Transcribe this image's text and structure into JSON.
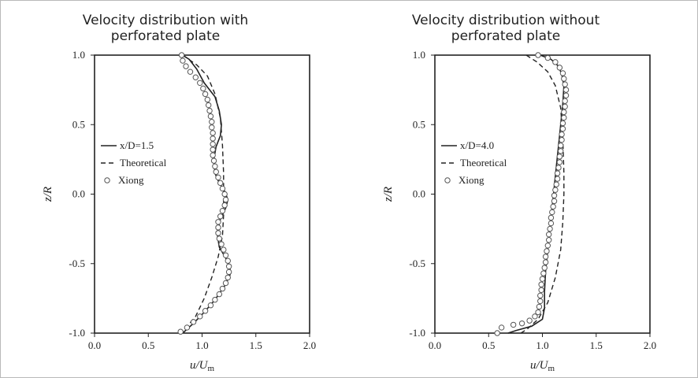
{
  "chart_data": [
    {
      "type": "line",
      "title": "Velocity distribution with perforated plate",
      "xlabel": "u/U",
      "xlabel_sub": "m",
      "ylabel": "z/R",
      "xlim": [
        0.0,
        2.0
      ],
      "ylim": [
        -1.0,
        1.0
      ],
      "xticks": [
        "0.0",
        "0.5",
        "1.0",
        "1.5",
        "2.0"
      ],
      "yticks": [
        "1.0",
        "0.5",
        "0.0",
        "-0.5",
        "-1.0"
      ],
      "legend_position": "middle-left",
      "series": [
        {
          "name": "x/D=1.5",
          "style": "solid",
          "points": [
            [
              0.82,
              1.0
            ],
            [
              0.88,
              0.97
            ],
            [
              0.95,
              0.9
            ],
            [
              1.02,
              0.8
            ],
            [
              1.12,
              0.7
            ],
            [
              1.16,
              0.6
            ],
            [
              1.18,
              0.5
            ],
            [
              1.17,
              0.42
            ],
            [
              1.13,
              0.34
            ],
            [
              1.11,
              0.25
            ],
            [
              1.12,
              0.15
            ],
            [
              1.16,
              0.08
            ],
            [
              1.21,
              0.02
            ],
            [
              1.24,
              -0.04
            ],
            [
              1.22,
              -0.1
            ],
            [
              1.17,
              -0.18
            ],
            [
              1.14,
              -0.28
            ],
            [
              1.16,
              -0.38
            ],
            [
              1.22,
              -0.46
            ],
            [
              1.26,
              -0.52
            ],
            [
              1.26,
              -0.58
            ],
            [
              1.21,
              -0.66
            ],
            [
              1.12,
              -0.76
            ],
            [
              1.02,
              -0.85
            ],
            [
              0.92,
              -0.93
            ],
            [
              0.82,
              -1.0
            ]
          ]
        },
        {
          "name": "Theoretical",
          "style": "dashed",
          "points": [
            [
              0.82,
              1.0
            ],
            [
              0.95,
              0.93
            ],
            [
              1.05,
              0.85
            ],
            [
              1.12,
              0.72
            ],
            [
              1.17,
              0.55
            ],
            [
              1.19,
              0.35
            ],
            [
              1.2,
              0.15
            ],
            [
              1.2,
              0.0
            ],
            [
              1.2,
              -0.15
            ],
            [
              1.19,
              -0.3
            ],
            [
              1.15,
              -0.45
            ],
            [
              1.09,
              -0.6
            ],
            [
              1.02,
              -0.75
            ],
            [
              0.94,
              -0.88
            ],
            [
              0.84,
              -0.97
            ],
            [
              0.8,
              -1.0
            ]
          ]
        },
        {
          "name": "Xiong",
          "style": "markers",
          "points": [
            [
              0.81,
              1.0
            ],
            [
              0.82,
              0.96
            ],
            [
              0.85,
              0.92
            ],
            [
              0.89,
              0.88
            ],
            [
              0.94,
              0.84
            ],
            [
              0.98,
              0.8
            ],
            [
              1.01,
              0.76
            ],
            [
              1.03,
              0.72
            ],
            [
              1.05,
              0.68
            ],
            [
              1.06,
              0.64
            ],
            [
              1.07,
              0.6
            ],
            [
              1.08,
              0.56
            ],
            [
              1.09,
              0.52
            ],
            [
              1.09,
              0.48
            ],
            [
              1.1,
              0.44
            ],
            [
              1.1,
              0.4
            ],
            [
              1.1,
              0.36
            ],
            [
              1.1,
              0.32
            ],
            [
              1.1,
              0.28
            ],
            [
              1.11,
              0.24
            ],
            [
              1.12,
              0.2
            ],
            [
              1.13,
              0.16
            ],
            [
              1.15,
              0.12
            ],
            [
              1.17,
              0.08
            ],
            [
              1.19,
              0.04
            ],
            [
              1.21,
              0.0
            ],
            [
              1.22,
              -0.04
            ],
            [
              1.21,
              -0.08
            ],
            [
              1.19,
              -0.12
            ],
            [
              1.17,
              -0.16
            ],
            [
              1.15,
              -0.2
            ],
            [
              1.15,
              -0.24
            ],
            [
              1.15,
              -0.28
            ],
            [
              1.16,
              -0.32
            ],
            [
              1.18,
              -0.36
            ],
            [
              1.2,
              -0.4
            ],
            [
              1.22,
              -0.44
            ],
            [
              1.24,
              -0.48
            ],
            [
              1.25,
              -0.52
            ],
            [
              1.25,
              -0.56
            ],
            [
              1.24,
              -0.6
            ],
            [
              1.22,
              -0.64
            ],
            [
              1.19,
              -0.68
            ],
            [
              1.16,
              -0.72
            ],
            [
              1.12,
              -0.76
            ],
            [
              1.08,
              -0.8
            ],
            [
              1.03,
              -0.84
            ],
            [
              0.98,
              -0.88
            ],
            [
              0.92,
              -0.92
            ],
            [
              0.86,
              -0.96
            ],
            [
              0.8,
              -0.99
            ]
          ]
        }
      ]
    },
    {
      "type": "line",
      "title": "Velocity distribution without perforated plate",
      "xlabel": "u/U",
      "xlabel_sub": "m",
      "ylabel": "z/R",
      "xlim": [
        0.0,
        2.0
      ],
      "ylim": [
        -1.0,
        1.0
      ],
      "xticks": [
        "0.0",
        "0.5",
        "1.0",
        "1.5",
        "2.0"
      ],
      "yticks": [
        "1.0",
        "0.5",
        "0.0",
        "-0.5",
        "-1.0"
      ],
      "legend_position": "middle-left",
      "series": [
        {
          "name": "x/D=4.0",
          "style": "solid",
          "points": [
            [
              0.98,
              1.0
            ],
            [
              1.08,
              0.97
            ],
            [
              1.15,
              0.92
            ],
            [
              1.18,
              0.86
            ],
            [
              1.2,
              0.78
            ],
            [
              1.19,
              0.65
            ],
            [
              1.17,
              0.5
            ],
            [
              1.15,
              0.35
            ],
            [
              1.13,
              0.2
            ],
            [
              1.11,
              0.05
            ],
            [
              1.09,
              -0.1
            ],
            [
              1.07,
              -0.25
            ],
            [
              1.05,
              -0.4
            ],
            [
              1.03,
              -0.55
            ],
            [
              1.02,
              -0.7
            ],
            [
              1.02,
              -0.82
            ],
            [
              1.0,
              -0.9
            ],
            [
              0.9,
              -0.95
            ],
            [
              0.76,
              -0.98
            ],
            [
              0.68,
              -1.0
            ]
          ]
        },
        {
          "name": "Theoretical",
          "style": "dashed",
          "points": [
            [
              0.85,
              1.0
            ],
            [
              0.95,
              0.95
            ],
            [
              1.05,
              0.88
            ],
            [
              1.12,
              0.78
            ],
            [
              1.17,
              0.62
            ],
            [
              1.19,
              0.4
            ],
            [
              1.2,
              0.15
            ],
            [
              1.2,
              0.0
            ],
            [
              1.19,
              -0.2
            ],
            [
              1.17,
              -0.4
            ],
            [
              1.12,
              -0.6
            ],
            [
              1.05,
              -0.78
            ],
            [
              0.96,
              -0.9
            ],
            [
              0.86,
              -0.97
            ],
            [
              0.8,
              -1.0
            ]
          ]
        },
        {
          "name": "Xiong",
          "style": "markers",
          "points": [
            [
              0.96,
              1.0
            ],
            [
              1.05,
              0.98
            ],
            [
              1.12,
              0.95
            ],
            [
              1.16,
              0.91
            ],
            [
              1.19,
              0.87
            ],
            [
              1.2,
              0.83
            ],
            [
              1.21,
              0.79
            ],
            [
              1.22,
              0.75
            ],
            [
              1.22,
              0.71
            ],
            [
              1.21,
              0.67
            ],
            [
              1.21,
              0.63
            ],
            [
              1.2,
              0.59
            ],
            [
              1.2,
              0.55
            ],
            [
              1.19,
              0.51
            ],
            [
              1.19,
              0.47
            ],
            [
              1.18,
              0.43
            ],
            [
              1.18,
              0.39
            ],
            [
              1.17,
              0.35
            ],
            [
              1.17,
              0.31
            ],
            [
              1.16,
              0.27
            ],
            [
              1.16,
              0.23
            ],
            [
              1.15,
              0.19
            ],
            [
              1.14,
              0.15
            ],
            [
              1.14,
              0.11
            ],
            [
              1.13,
              0.07
            ],
            [
              1.12,
              0.03
            ],
            [
              1.11,
              -0.01
            ],
            [
              1.11,
              -0.05
            ],
            [
              1.1,
              -0.09
            ],
            [
              1.09,
              -0.13
            ],
            [
              1.08,
              -0.17
            ],
            [
              1.08,
              -0.21
            ],
            [
              1.07,
              -0.25
            ],
            [
              1.06,
              -0.29
            ],
            [
              1.06,
              -0.33
            ],
            [
              1.05,
              -0.37
            ],
            [
              1.04,
              -0.41
            ],
            [
              1.03,
              -0.45
            ],
            [
              1.03,
              -0.49
            ],
            [
              1.02,
              -0.53
            ],
            [
              1.01,
              -0.57
            ],
            [
              1.0,
              -0.61
            ],
            [
              0.99,
              -0.65
            ],
            [
              0.99,
              -0.69
            ],
            [
              0.98,
              -0.73
            ],
            [
              0.98,
              -0.77
            ],
            [
              0.97,
              -0.81
            ],
            [
              0.96,
              -0.85
            ],
            [
              0.93,
              -0.88
            ],
            [
              0.88,
              -0.91
            ],
            [
              0.81,
              -0.93
            ],
            [
              0.73,
              -0.94
            ],
            [
              0.62,
              -0.96
            ],
            [
              0.58,
              -1.0
            ]
          ]
        }
      ]
    }
  ]
}
